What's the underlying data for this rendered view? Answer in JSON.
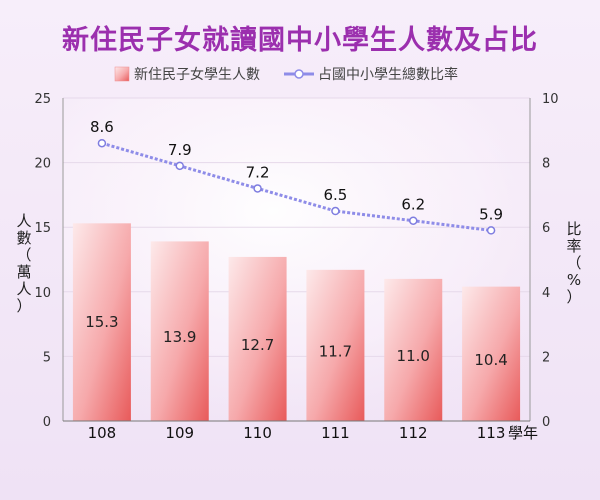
{
  "chart_data": {
    "type": "bar",
    "title": "新住民子女就讀國中小學生人數及占比",
    "categories": [
      "108",
      "109",
      "110",
      "111",
      "112",
      "113"
    ],
    "xlabel_suffix": "學年",
    "series": [
      {
        "name": "新住民子女學生人數",
        "type": "bar",
        "axis": "left",
        "values": [
          15.3,
          13.9,
          12.7,
          11.7,
          11.0,
          10.4
        ],
        "labels": [
          "15.3",
          "13.9",
          "12.7",
          "11.7",
          "11.0",
          "10.4"
        ],
        "color": "#e85a5a"
      },
      {
        "name": "占國中小學生總數比率",
        "type": "line",
        "axis": "right",
        "values": [
          8.6,
          7.9,
          7.2,
          6.5,
          6.2,
          5.9
        ],
        "labels": [
          "8.6",
          "7.9",
          "7.2",
          "6.5",
          "6.2",
          "5.9"
        ],
        "color": "#8e8ce8"
      }
    ],
    "y_left": {
      "label": "人數（萬人）",
      "range": [
        0,
        25
      ],
      "ticks": [
        "0",
        "5",
        "10",
        "15",
        "20",
        "25"
      ]
    },
    "y_right": {
      "label": "比率（%）",
      "range": [
        0,
        10
      ],
      "ticks": [
        "0",
        "2",
        "4",
        "6",
        "8",
        "10"
      ]
    },
    "legend_position": "top-center",
    "grid": "horizontal"
  }
}
